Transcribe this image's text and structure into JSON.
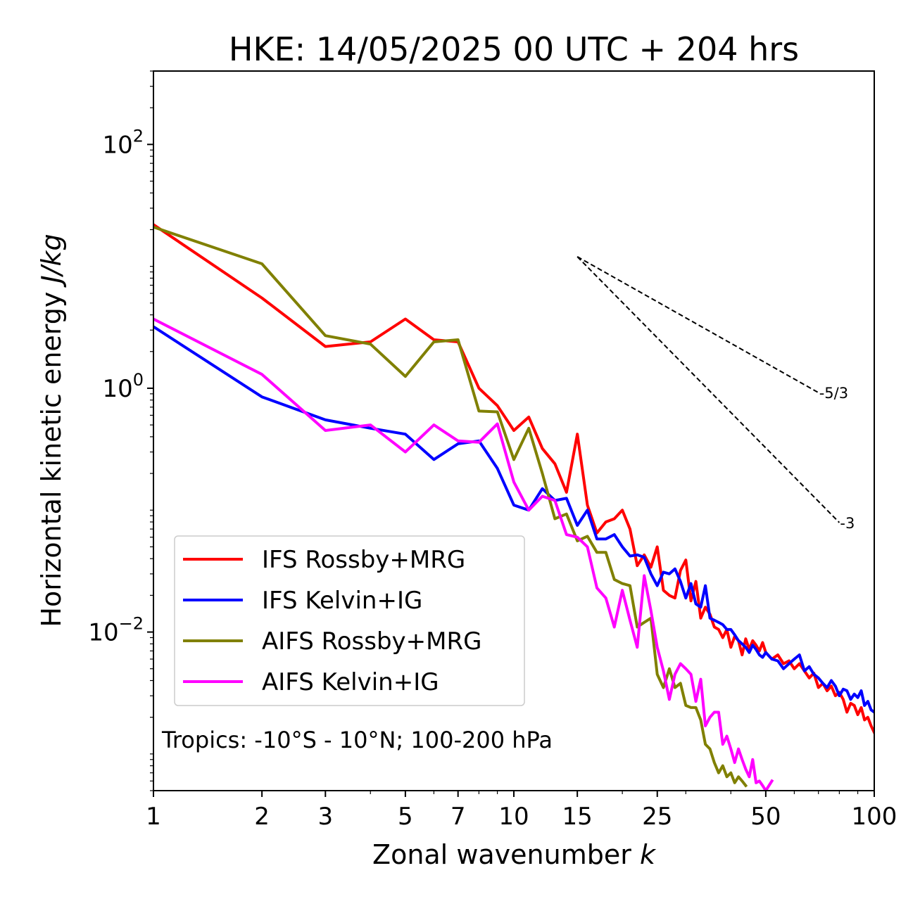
{
  "chart_data": {
    "type": "line",
    "title": "HKE: 14/05/2025 00 UTC + 204 hrs",
    "xlabel_text": "Zonal wavenumber ",
    "xlabel_var": "k",
    "ylabel_text": "Horizontal kinetic energy ",
    "ylabel_unit": "J/kg",
    "x_scale": "log",
    "y_scale": "log",
    "xlim": [
      1,
      100
    ],
    "ylim": [
      0.0005,
      400
    ],
    "x_ticks": [
      1,
      2,
      3,
      5,
      7,
      10,
      15,
      25,
      50,
      100
    ],
    "x_tick_labels": [
      "1",
      "2",
      "3",
      "5",
      "7",
      "10",
      "15",
      "25",
      "50",
      "100"
    ],
    "y_ticks": [
      {
        "value": 0.01,
        "base": "10",
        "exp": "−2"
      },
      {
        "value": 1,
        "base": "10",
        "exp": "0"
      },
      {
        "value": 100,
        "base": "10",
        "exp": "2"
      }
    ],
    "annotation": "Tropics: -10°S - 10°N; 100-200 hPa",
    "legend_position": "lower-left",
    "grid": false,
    "reference_lines": [
      {
        "label": "-5/3",
        "slope": -1.6667,
        "x0": 15,
        "y0": 12,
        "x1": 70,
        "color": "#000000"
      },
      {
        "label": "-3",
        "slope": -3,
        "x0": 15,
        "y0": 12,
        "x1": 80,
        "color": "#000000"
      }
    ],
    "series": [
      {
        "name": "IFS Rossby+MRG",
        "color": "#ff0000",
        "x": [
          1,
          2,
          3,
          4,
          5,
          6,
          7,
          8,
          9,
          10,
          11,
          12,
          13,
          14,
          15,
          16,
          17,
          18,
          19,
          20,
          21,
          22,
          23,
          24,
          25,
          26,
          27,
          28,
          29,
          30,
          31,
          32,
          33,
          34,
          35,
          36,
          37,
          38,
          39,
          40,
          41,
          42,
          43,
          44,
          45,
          46,
          47,
          48,
          49,
          50,
          52,
          54,
          56,
          58,
          60,
          62,
          64,
          66,
          68,
          70,
          72,
          74,
          76,
          78,
          80,
          82,
          84,
          86,
          88,
          90,
          92,
          94,
          96,
          98,
          100
        ],
        "y": [
          22,
          5.5,
          2.2,
          2.4,
          3.7,
          2.5,
          2.4,
          1.0,
          0.72,
          0.45,
          0.58,
          0.32,
          0.24,
          0.14,
          0.42,
          0.11,
          0.065,
          0.08,
          0.085,
          0.1,
          0.07,
          0.035,
          0.043,
          0.034,
          0.05,
          0.022,
          0.02,
          0.019,
          0.032,
          0.039,
          0.018,
          0.026,
          0.013,
          0.016,
          0.014,
          0.011,
          0.0105,
          0.009,
          0.0105,
          0.0075,
          0.0092,
          0.0085,
          0.0065,
          0.0088,
          0.0072,
          0.0085,
          0.0078,
          0.007,
          0.0082,
          0.0068,
          0.006,
          0.0065,
          0.0055,
          0.0058,
          0.005,
          0.0055,
          0.0048,
          0.0042,
          0.0046,
          0.0035,
          0.0038,
          0.0033,
          0.0036,
          0.003,
          0.0032,
          0.0028,
          0.0022,
          0.0026,
          0.0025,
          0.0021,
          0.0024,
          0.0019,
          0.002,
          0.0017,
          0.0015
        ]
      },
      {
        "name": "IFS Kelvin+IG",
        "color": "#0000ff",
        "x": [
          1,
          2,
          3,
          4,
          5,
          6,
          7,
          8,
          9,
          10,
          11,
          12,
          13,
          14,
          15,
          16,
          17,
          18,
          19,
          20,
          21,
          22,
          23,
          24,
          25,
          26,
          27,
          28,
          29,
          30,
          31,
          32,
          33,
          34,
          35,
          36,
          37,
          38,
          39,
          40,
          41,
          42,
          43,
          44,
          45,
          46,
          47,
          48,
          49,
          50,
          52,
          54,
          56,
          58,
          60,
          62,
          64,
          66,
          68,
          70,
          72,
          74,
          76,
          78,
          80,
          82,
          84,
          86,
          88,
          90,
          92,
          94,
          96,
          98,
          100
        ],
        "y": [
          3.2,
          0.85,
          0.55,
          0.47,
          0.42,
          0.26,
          0.35,
          0.37,
          0.22,
          0.11,
          0.1,
          0.15,
          0.12,
          0.125,
          0.075,
          0.1,
          0.058,
          0.058,
          0.063,
          0.05,
          0.042,
          0.043,
          0.041,
          0.03,
          0.024,
          0.031,
          0.03,
          0.033,
          0.026,
          0.019,
          0.025,
          0.017,
          0.016,
          0.024,
          0.013,
          0.0125,
          0.012,
          0.0115,
          0.0105,
          0.0105,
          0.0095,
          0.0085,
          0.008,
          0.0075,
          0.0068,
          0.0078,
          0.0072,
          0.0065,
          0.0062,
          0.0068,
          0.006,
          0.0058,
          0.005,
          0.0055,
          0.006,
          0.0065,
          0.0048,
          0.0052,
          0.0045,
          0.0042,
          0.0038,
          0.0035,
          0.004,
          0.0036,
          0.003,
          0.0034,
          0.0033,
          0.0028,
          0.0031,
          0.0029,
          0.0033,
          0.0025,
          0.0027,
          0.0023,
          0.0022
        ]
      },
      {
        "name": "AIFS Rossby+MRG",
        "color": "#808000",
        "x": [
          1,
          2,
          3,
          4,
          5,
          6,
          7,
          8,
          9,
          10,
          11,
          12,
          13,
          14,
          15,
          16,
          17,
          18,
          19,
          20,
          21,
          22,
          23,
          24,
          25,
          26,
          27,
          28,
          29,
          30,
          31,
          32,
          33,
          34,
          35,
          36,
          37,
          38,
          39,
          40,
          41,
          42,
          43,
          44
        ],
        "y": [
          21,
          10.5,
          2.7,
          2.3,
          1.25,
          2.4,
          2.5,
          0.65,
          0.64,
          0.26,
          0.47,
          0.2,
          0.085,
          0.093,
          0.056,
          0.061,
          0.045,
          0.045,
          0.027,
          0.025,
          0.024,
          0.011,
          0.012,
          0.013,
          0.0045,
          0.0035,
          0.005,
          0.0035,
          0.0038,
          0.0025,
          0.0024,
          0.0024,
          0.0019,
          0.0012,
          0.0011,
          0.00085,
          0.0007,
          0.0008,
          0.00065,
          0.0007,
          0.00058,
          0.00065,
          0.0006,
          0.00055
        ]
      },
      {
        "name": "AIFS Kelvin+IG",
        "color": "#ff00ff",
        "x": [
          1,
          2,
          3,
          4,
          5,
          6,
          7,
          8,
          9,
          10,
          11,
          12,
          13,
          14,
          15,
          16,
          17,
          18,
          19,
          20,
          21,
          22,
          23,
          24,
          25,
          26,
          27,
          28,
          29,
          30,
          31,
          32,
          33,
          34,
          35,
          36,
          37,
          38,
          39,
          40,
          41,
          42,
          43,
          44,
          45,
          46,
          47,
          48,
          49,
          50,
          52
        ],
        "y": [
          3.7,
          1.3,
          0.45,
          0.5,
          0.3,
          0.5,
          0.37,
          0.36,
          0.51,
          0.17,
          0.1,
          0.13,
          0.12,
          0.063,
          0.06,
          0.05,
          0.023,
          0.019,
          0.011,
          0.022,
          0.0125,
          0.0075,
          0.029,
          0.015,
          0.0075,
          0.0048,
          0.0028,
          0.0045,
          0.0055,
          0.005,
          0.0045,
          0.0027,
          0.0041,
          0.0017,
          0.002,
          0.0022,
          0.0022,
          0.0012,
          0.0014,
          0.0011,
          0.00085,
          0.0011,
          0.0009,
          0.00075,
          0.00065,
          0.0009,
          0.00058,
          0.0006,
          0.00055,
          0.0005,
          0.0006
        ]
      }
    ]
  }
}
